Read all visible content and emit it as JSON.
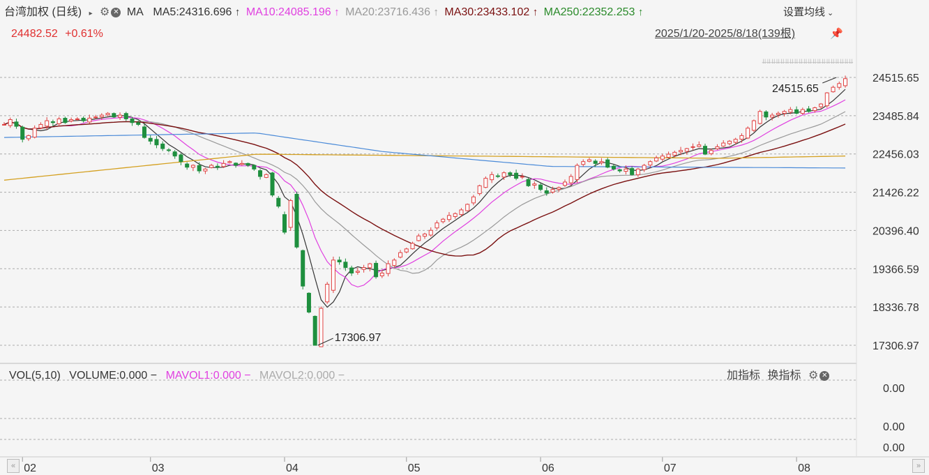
{
  "header": {
    "title": "台湾加权 (日线)",
    "ma_label": "MA",
    "ma5": "MA5:24316.696",
    "ma10": "MA10:24085.196",
    "ma20": "MA20:23716.436",
    "ma30": "MA30:23433.102",
    "ma250": "MA250:22352.253",
    "up_arrow": "↑",
    "settings": "设置均线",
    "price": "24482.52",
    "change": "+0.61%",
    "range": "2025/1/20-2025/8/18(139根)"
  },
  "volume_header": {
    "vol": "VOL(5,10)",
    "volume": "VOLUME:0.000",
    "mavol1": "MAVOL1:0.000",
    "mavol2": "MAVOL2:0.000",
    "dash": "−",
    "add_indicator": "加指标",
    "switch_indicator": "换指标"
  },
  "colors": {
    "up": "#e04040",
    "down": "#1e8f3e",
    "ma5": "#333333",
    "ma10": "#e040e0",
    "ma20": "#999999",
    "ma30": "#7a1010",
    "ma250": "#2a8a2a",
    "blue_line": "#4a8ad8",
    "gold_line": "#d4a020"
  },
  "chart_data": {
    "type": "candlestick",
    "y_ticks": [
      24515.65,
      23485.84,
      22456.03,
      21426.22,
      20396.4,
      19366.59,
      18336.78,
      17306.97
    ],
    "ylim": [
      17306.97,
      24515.65
    ],
    "x_ticks": [
      "02",
      "03",
      "04",
      "05",
      "06",
      "07",
      "08"
    ],
    "annotations": [
      {
        "text": "17306.97",
        "value": 17306.97
      },
      {
        "text": "24515.65",
        "value": 24515.65
      }
    ],
    "volume_ticks": [
      "0.00",
      "0.00",
      "0.00"
    ],
    "closes": [
      23250,
      23380,
      23200,
      22850,
      22950,
      23150,
      23250,
      23350,
      23300,
      23400,
      23300,
      23380,
      23400,
      23350,
      23420,
      23450,
      23500,
      23550,
      23450,
      23500,
      23400,
      23300,
      23250,
      22900,
      22800,
      22700,
      22600,
      22550,
      22400,
      22250,
      22100,
      22150,
      22000,
      22050,
      22150,
      22100,
      22200,
      22250,
      22150,
      22200,
      22150,
      22050,
      21850,
      21900,
      21350,
      21050,
      20350,
      21200,
      19950,
      18900,
      18200,
      17306,
      18300,
      18950,
      19600,
      19550,
      19400,
      19250,
      19300,
      19400,
      19500,
      19150,
      19250,
      19500,
      19600,
      19800,
      19900,
      20050,
      20250,
      20300,
      20400,
      20600,
      20700,
      20800,
      20850,
      20950,
      21100,
      21300,
      21600,
      21800,
      21900,
      21850,
      21950,
      21900,
      21800,
      21850,
      21600,
      21650,
      21500,
      21400,
      21500,
      21550,
      21700,
      21850,
      22150,
      22250,
      22300,
      22200,
      22250,
      22100,
      22050,
      22000,
      22050,
      21900,
      22050,
      22150,
      22250,
      22350,
      22400,
      22450,
      22500,
      22550,
      22600,
      22650,
      22700,
      22450,
      22550,
      22650,
      22750,
      22800,
      22850,
      22950,
      23150,
      23350,
      23600,
      23450,
      23500,
      23550,
      23600,
      23650,
      23550,
      23650,
      23600,
      23700,
      23800,
      24100,
      24250,
      24350,
      24482
    ]
  }
}
